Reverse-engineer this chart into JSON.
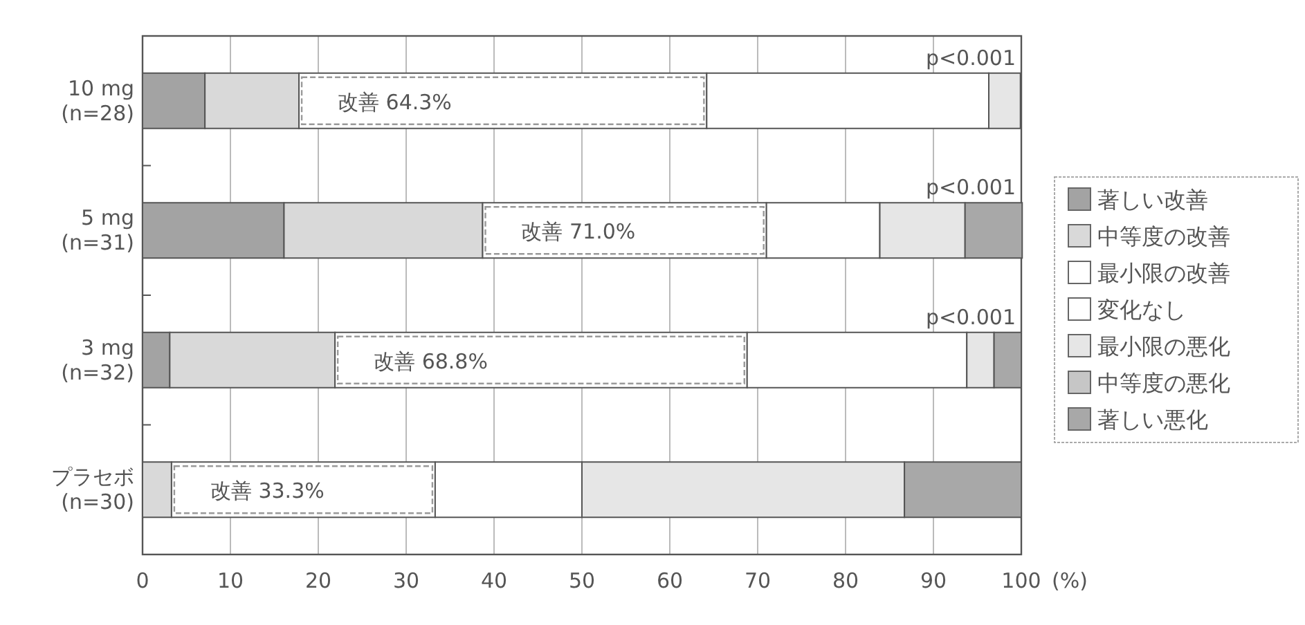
{
  "chart_data": {
    "type": "bar",
    "orientation": "horizontal",
    "stacked": true,
    "categories": [
      "10 mg\n(n=28)",
      "5 mg\n(n=31)",
      "3 mg\n(n=32)",
      "プラセボ\n(n=30)"
    ],
    "series": [
      {
        "name": "著しい改善",
        "color": "#a3a3a3",
        "values": [
          7.1,
          16.1,
          3.1,
          0
        ]
      },
      {
        "name": "中等度の改善",
        "color": "#d9d9d9",
        "values": [
          10.7,
          22.6,
          18.8,
          3.3
        ]
      },
      {
        "name": "最小限の改善",
        "color": "#ffffff",
        "values": [
          46.4,
          32.3,
          46.9,
          30.0
        ]
      },
      {
        "name": "変化なし",
        "color": "#ffffff",
        "values": [
          32.1,
          12.9,
          25.0,
          16.7
        ]
      },
      {
        "name": "最小限の悪化",
        "color": "#e6e6e6",
        "values": [
          3.6,
          9.7,
          3.1,
          36.7
        ]
      },
      {
        "name": "中等度の悪化",
        "color": "#c6c6c6",
        "values": [
          0,
          0,
          0,
          0
        ]
      },
      {
        "name": "著しい悪化",
        "color": "#a8a8a8",
        "values": [
          0,
          6.5,
          3.1,
          13.3
        ]
      }
    ],
    "xlim": [
      0,
      100
    ],
    "xticks": [
      0,
      10,
      20,
      30,
      40,
      50,
      60,
      70,
      80,
      90,
      100
    ],
    "xlabel": "(%)",
    "grid": "x",
    "legend": "right",
    "annotations": [
      "p<0.001",
      "p<0.001",
      "p<0.001",
      "改善 64.3%",
      "改善 71.0%",
      "改善 68.8%",
      "改善 33.3%"
    ]
  }
}
